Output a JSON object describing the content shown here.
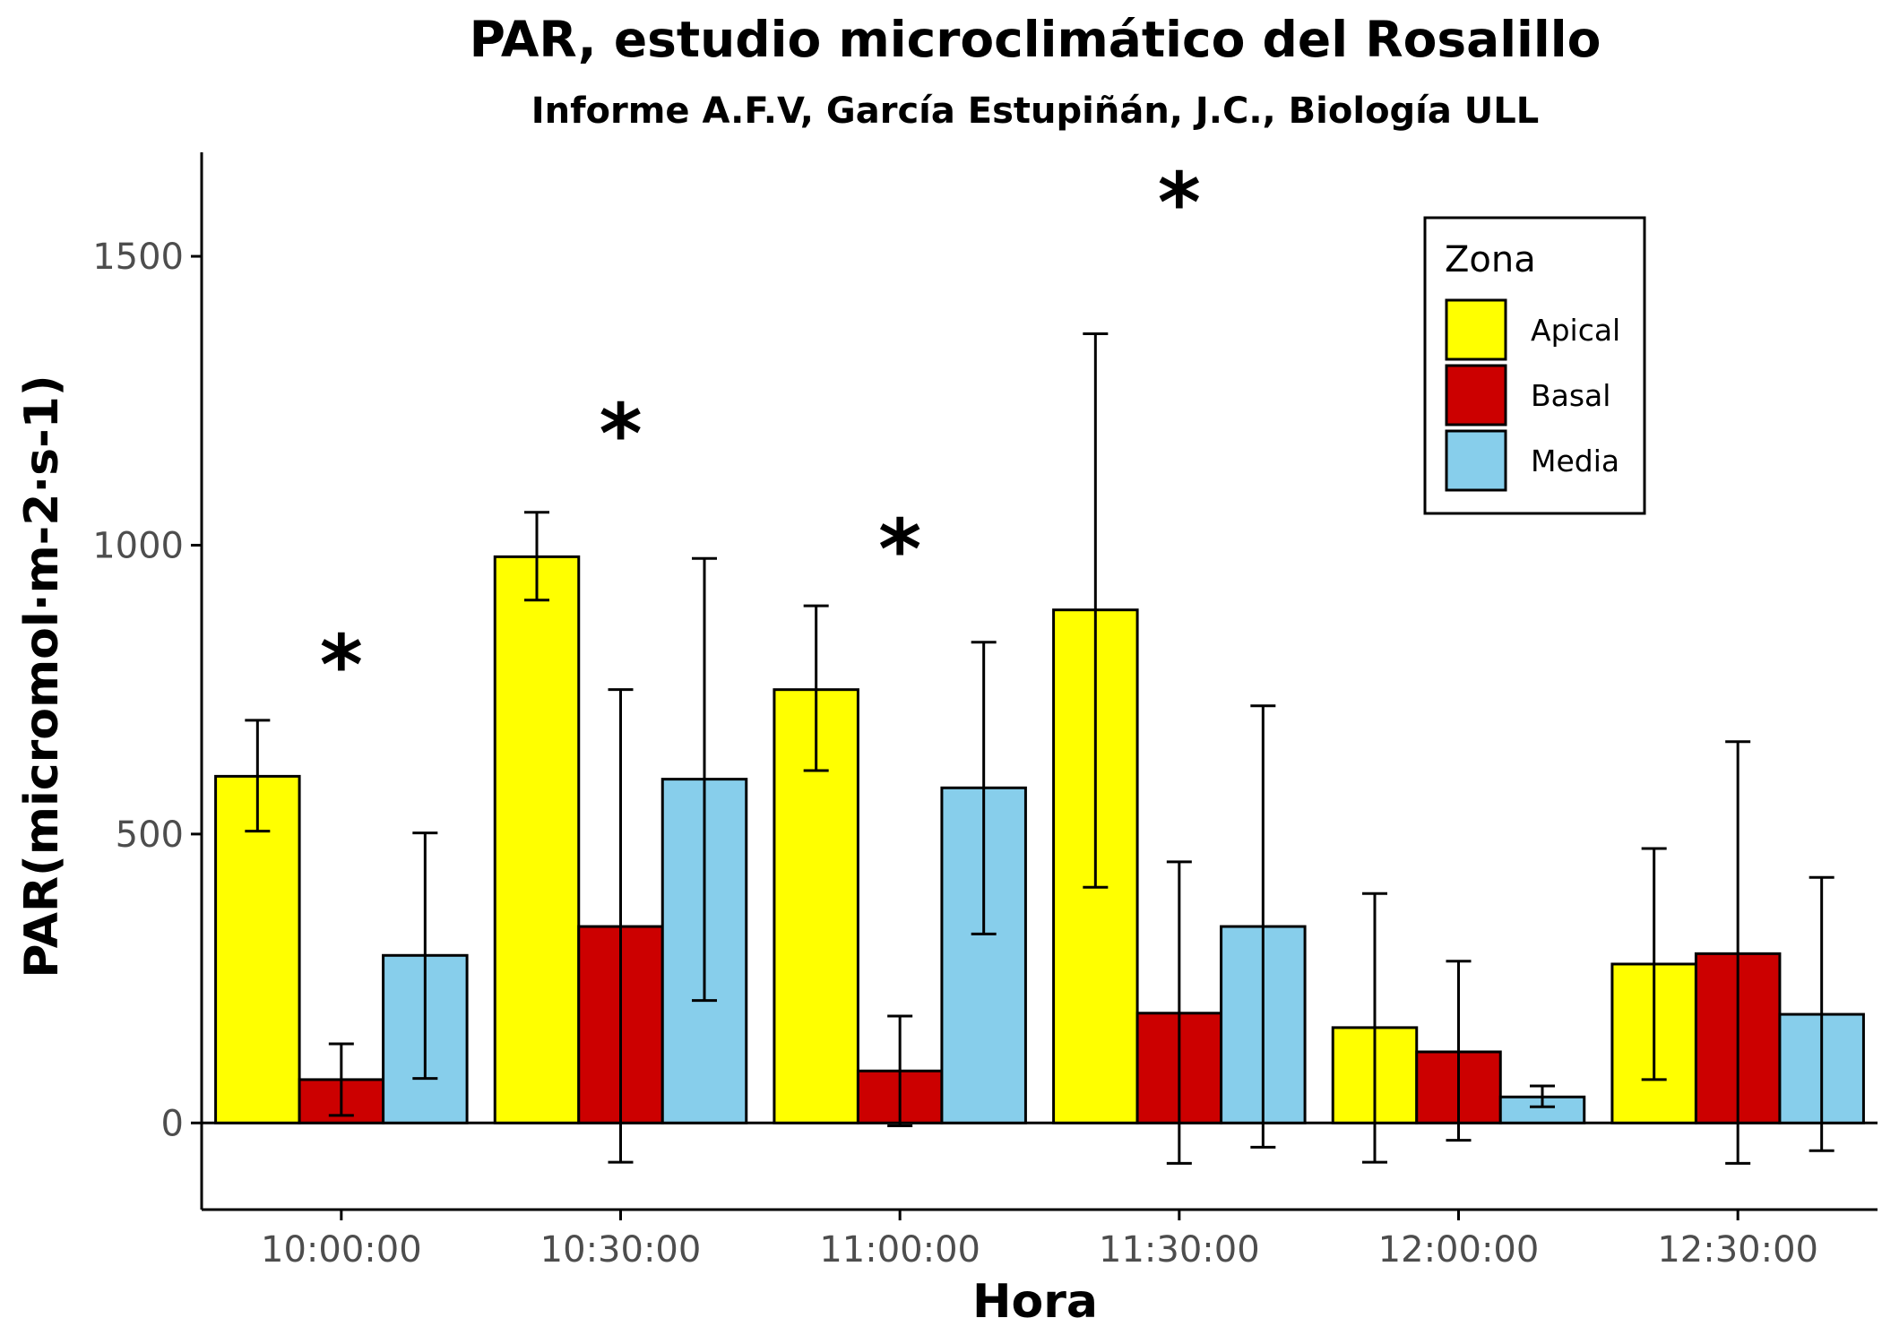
{
  "chart_data": {
    "type": "bar",
    "title": "PAR, estudio microclimático del Rosalillo",
    "subtitle": "Informe A.F.V, García Estupiñán, J.C., Biología ULL",
    "xlabel": "Hora",
    "ylabel": "PAR(micromol·m-2·s-1)",
    "categories": [
      "10:00:00",
      "10:30:00",
      "11:00:00",
      "11:30:00",
      "12:00:00",
      "12:30:00"
    ],
    "ylim": [
      -150,
      1680
    ],
    "yticks": [
      "0",
      "500",
      "1000",
      "1500"
    ],
    "grid": false,
    "legend": {
      "title": "Zona",
      "position": "top-right"
    },
    "series": [
      {
        "name": "Apical",
        "color": "#FFFF00",
        "values": [
          600,
          980,
          750,
          888,
          165,
          275
        ],
        "error_low": [
          505,
          905,
          610,
          408,
          -68,
          75
        ],
        "error_high": [
          697,
          1057,
          895,
          1366,
          397,
          475
        ]
      },
      {
        "name": "Basal",
        "color": "#CC0000",
        "values": [
          75,
          340,
          90,
          190,
          123,
          293
        ],
        "error_low": [
          13,
          -68,
          -5,
          -70,
          -30,
          -70
        ],
        "error_high": [
          137,
          750,
          185,
          452,
          280,
          660
        ]
      },
      {
        "name": "Media",
        "color": "#87CEEB",
        "values": [
          290,
          595,
          580,
          340,
          45,
          188
        ],
        "error_low": [
          77,
          212,
          327,
          -42,
          28,
          -48
        ],
        "error_high": [
          502,
          977,
          832,
          722,
          64,
          425
        ]
      }
    ],
    "annotations": [
      {
        "text": "*",
        "category": "10:00:00",
        "y": 790
      },
      {
        "text": "*",
        "category": "10:30:00",
        "y": 1190
      },
      {
        "text": "*",
        "category": "11:00:00",
        "y": 990
      },
      {
        "text": "*",
        "category": "11:30:00",
        "y": 1590
      }
    ]
  }
}
